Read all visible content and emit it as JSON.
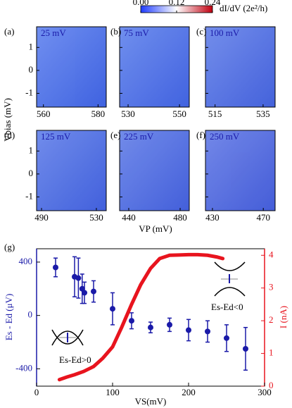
{
  "chart_data": [
    {
      "type": "heatmap",
      "colorbar": {
        "label": "dI/dV (2e²/h)",
        "lim": [
          0,
          0.24
        ],
        "ticks": [
          {
            "value": 0,
            "label": "0.00"
          },
          0.12,
          0.24
        ]
      },
      "ylabel": "Vbias (mV)",
      "xlabel": "VP (mV)",
      "ylim": [
        -1.6,
        1.9
      ],
      "yticks": [
        1,
        0,
        -1
      ],
      "panels": [
        {
          "label": "(a)",
          "annotation": "25 mV",
          "xlim": [
            557.5,
            583
          ],
          "xticks": [
            560,
            580
          ]
        },
        {
          "label": "(b)",
          "annotation": "75 mV",
          "xlim": [
            526.7,
            553.8
          ],
          "xticks": [
            530,
            550
          ]
        },
        {
          "label": "(c)",
          "annotation": "100 mV",
          "xlim": [
            511,
            540
          ],
          "xticks": [
            515,
            535
          ]
        },
        {
          "label": "(d)",
          "annotation": "125 mV",
          "xlim": [
            486.4,
            537.2
          ],
          "xticks": [
            490,
            530
          ]
        },
        {
          "label": "(e)",
          "annotation": "225 mV",
          "xlim": [
            432.9,
            487.1
          ],
          "xticks": [
            440,
            480
          ]
        },
        {
          "label": "(f)",
          "annotation": "250 mV",
          "xlim": [
            424.5,
            479.3
          ],
          "xticks": [
            430,
            470
          ]
        }
      ]
    },
    {
      "type": "scatter",
      "label": "(g)",
      "xlabel": "VS(mV)",
      "ylabel": "Es - Ed (μV)",
      "y2label": "I (nA)",
      "xlim": [
        0,
        300
      ],
      "xticks": [
        0,
        100,
        200,
        300
      ],
      "ylim": [
        -530,
        500
      ],
      "yticks": [
        -400,
        0,
        400
      ],
      "y2lim": [
        0,
        4.2
      ],
      "y2ticks": [
        0,
        1,
        2,
        3,
        4
      ],
      "annotations": [
        "Es-Ed>0",
        "Es-Ed<0"
      ],
      "series": [
        {
          "color": "#1a1aa8",
          "x": [
            25,
            50,
            55,
            60,
            63,
            75,
            100,
            125,
            150,
            175,
            200,
            225,
            250,
            275
          ],
          "values": [
            360,
            290,
            280,
            200,
            170,
            180,
            50,
            -40,
            -90,
            -70,
            -110,
            -120,
            -170,
            -250
          ],
          "errors": [
            70,
            150,
            150,
            110,
            80,
            80,
            120,
            60,
            40,
            50,
            80,
            80,
            100,
            160
          ]
        },
        {
          "color": "#e8141e",
          "axis": "y2",
          "x": [
            30,
            40,
            50,
            62,
            75,
            87,
            100,
            112,
            125,
            137,
            150,
            162,
            175,
            187,
            200,
            212,
            225,
            237,
            245
          ],
          "values": [
            0.2,
            0.28,
            0.35,
            0.45,
            0.6,
            0.85,
            1.2,
            1.8,
            2.5,
            3.1,
            3.6,
            3.9,
            4.0,
            4.01,
            4.02,
            4.02,
            4.0,
            3.95,
            3.9
          ]
        }
      ]
    }
  ]
}
